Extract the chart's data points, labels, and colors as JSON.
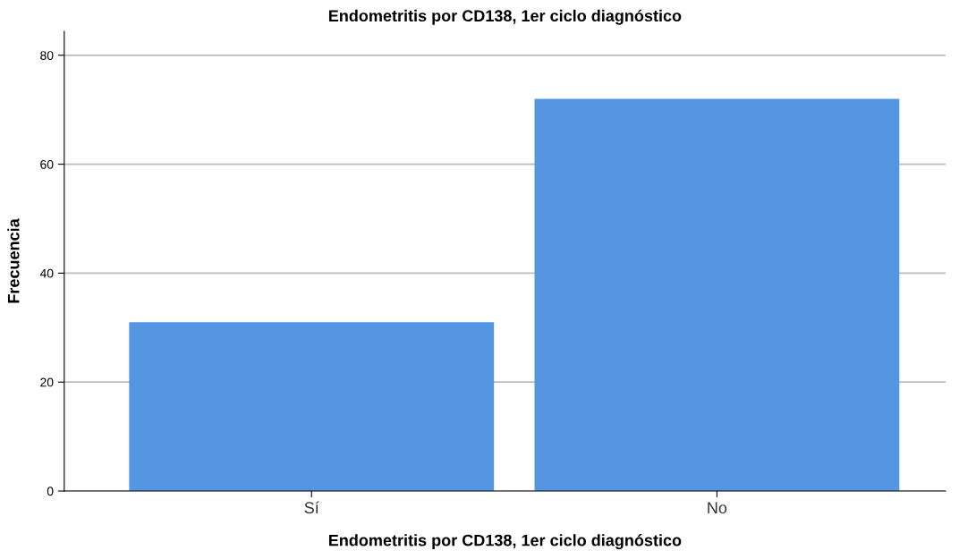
{
  "chart_data": {
    "type": "bar",
    "title": "Endometritis por CD138, 1er ciclo diagnóstico",
    "xlabel": "Endometritis por CD138, 1er ciclo diagnóstico",
    "ylabel": "Frecuencia",
    "categories": [
      "Sí",
      "No"
    ],
    "values": [
      31,
      72
    ],
    "color": "#5596e3",
    "ylim": [
      0,
      84.4
    ],
    "yticks": [
      0,
      20,
      40,
      60,
      80
    ],
    "grid": "y"
  }
}
